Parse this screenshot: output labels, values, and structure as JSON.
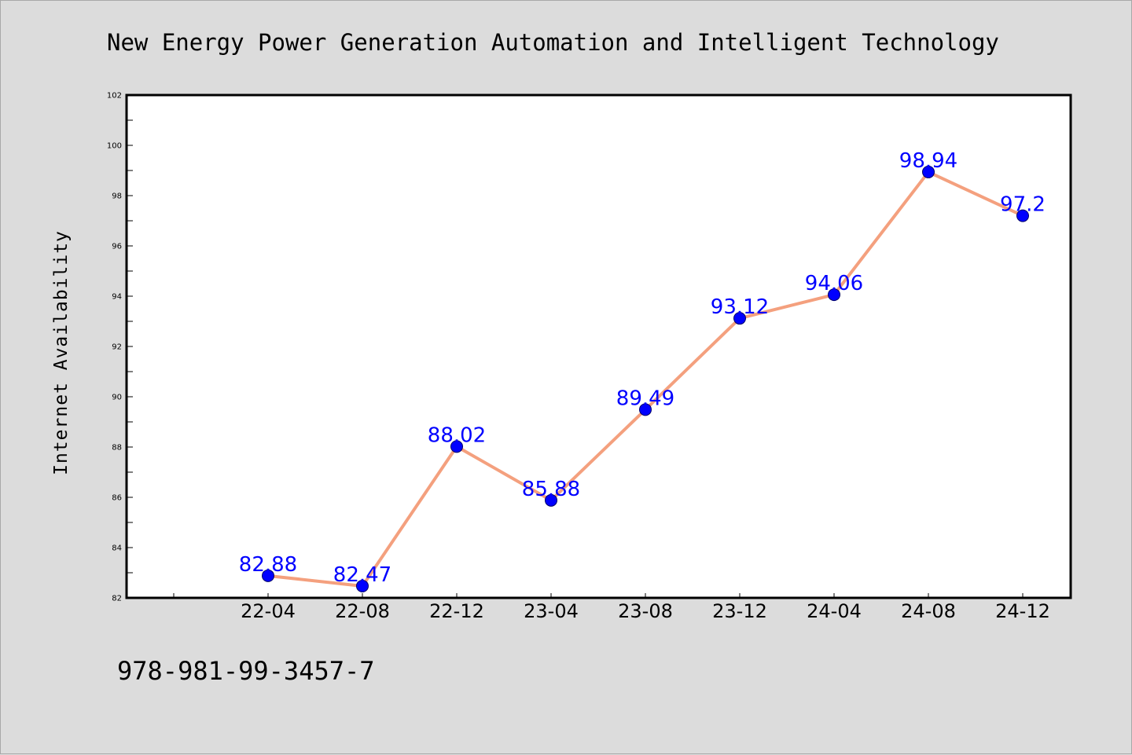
{
  "chart_data": {
    "type": "line",
    "title": "New Energy Power Generation Automation and Intelligent Technology",
    "xlabel": "",
    "ylabel": "Internet Availability",
    "categories": [
      "22-04",
      "22-08",
      "22-12",
      "23-04",
      "23-08",
      "23-12",
      "24-04",
      "24-08",
      "24-12"
    ],
    "series": [
      {
        "values": [
          82.88,
          82.47,
          88.02,
          85.88,
          89.49,
          93.12,
          94.06,
          98.94,
          97.2
        ],
        "labels": [
          "82.88",
          "82.47",
          "88.02",
          "85.88",
          "89.49",
          "93.12",
          "94.06",
          "98.94",
          "97.2"
        ]
      }
    ],
    "ylim": [
      82,
      102
    ],
    "yticks": [
      82,
      84,
      86,
      88,
      90,
      92,
      94,
      96,
      98,
      100,
      102
    ],
    "grid": false,
    "legend": "none",
    "colors": {
      "line": "#f4a07e",
      "marker": "#0000ff",
      "data_label": "#0000ff",
      "plot_background": "#ffffff",
      "figure_background": "#dcdcdc"
    }
  },
  "footer": {
    "code": "978-981-99-3457-7"
  }
}
